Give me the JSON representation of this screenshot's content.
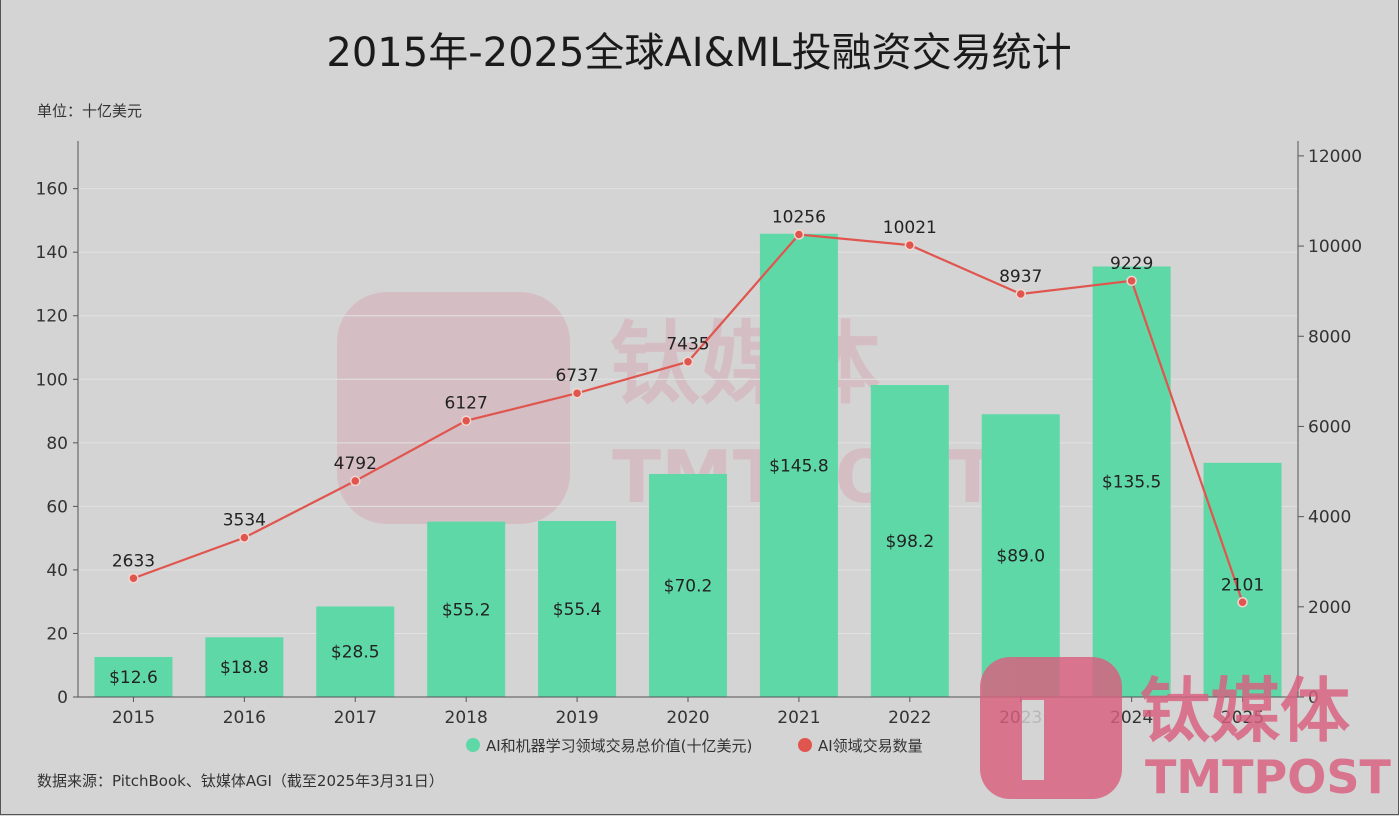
{
  "chart_data": {
    "type": "bar+line",
    "title": "2015年-2025全球AI&ML投融资交易统计",
    "unit_label": "单位：十亿美元",
    "source": "数据来源：PitchBook、钛媒体AGI（截至2025年3月31日）",
    "categories": [
      "2015",
      "2016",
      "2017",
      "2018",
      "2019",
      "2020",
      "2021",
      "2022",
      "2023",
      "2024",
      "2025"
    ],
    "series": [
      {
        "name": "AI和机器学习领域交易总价值(十亿美元)",
        "type": "bar",
        "axis": "left",
        "color": "#5fd8a8",
        "values": [
          12.6,
          18.8,
          28.5,
          55.2,
          55.4,
          70.2,
          145.8,
          98.2,
          89.0,
          135.5,
          73.7
        ],
        "labels": [
          "$12.6",
          "$18.8",
          "$28.5",
          "$55.2",
          "$55.4",
          "$70.2",
          "$145.8",
          "$98.2",
          "$89.0",
          "$135.5",
          ""
        ]
      },
      {
        "name": "AI领域交易数量",
        "type": "line",
        "axis": "right",
        "color": "#e0554d",
        "values": [
          2633,
          3534,
          4792,
          6127,
          6737,
          7435,
          10256,
          10021,
          8937,
          9229,
          2101
        ],
        "labels": [
          "2633",
          "3534",
          "4792",
          "6127",
          "6737",
          "7435",
          "10256",
          "10021",
          "8937",
          "9229",
          "2101"
        ]
      }
    ],
    "left_axis": {
      "ylim": [
        0,
        175
      ],
      "ticks": [
        0,
        20,
        40,
        60,
        80,
        100,
        120,
        140,
        160
      ]
    },
    "right_axis": {
      "ylim": [
        0,
        12330
      ],
      "ticks": [
        0,
        2000,
        4000,
        6000,
        8000,
        10000,
        12000
      ]
    },
    "grid": true,
    "legend_position": "bottom"
  },
  "watermark": {
    "logo_cn": "钛媒体",
    "logo_en": "TMTPOST",
    "color": "#d9607e"
  }
}
